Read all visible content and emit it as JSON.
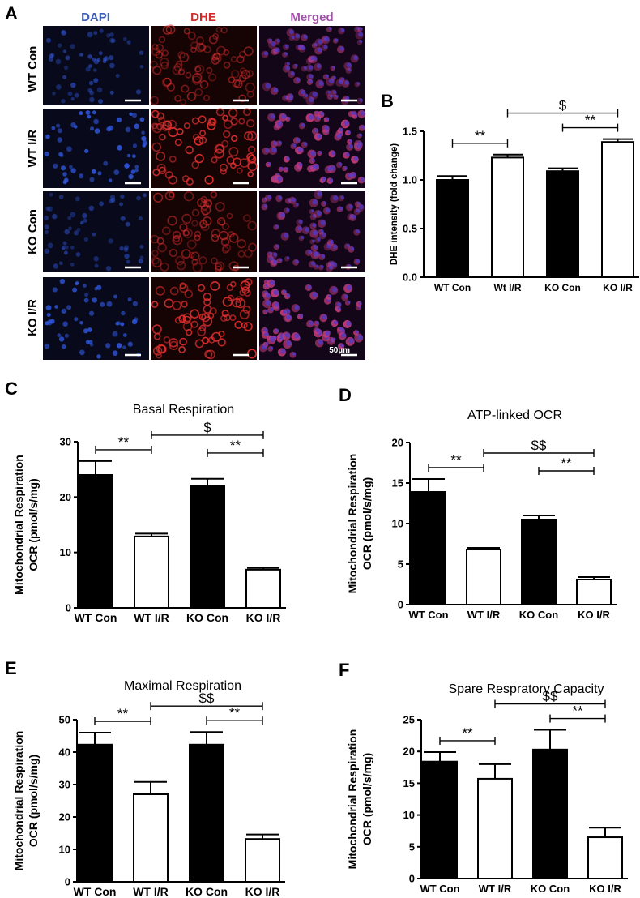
{
  "panel_a": {
    "letter": "A",
    "columns": [
      {
        "label": "DAPI",
        "color": "#3d5fb8"
      },
      {
        "label": "DHE",
        "color": "#d42a2a"
      },
      {
        "label": "Merged",
        "color": "#a050a8"
      }
    ],
    "rows": [
      "WT Con",
      "WT I/R",
      "KO Con",
      "KO I/R"
    ],
    "scale_label": "50µm",
    "colors": {
      "dapi_bg": "#080a1c",
      "dapi_dot": "#2f55d8",
      "dhe_bg": "#160303",
      "dhe_dot": "#e23030",
      "merged_bg": "#120618",
      "merged_dot": "#c03a78"
    }
  },
  "chart_data": [
    {
      "id": "B",
      "type": "bar",
      "title": "",
      "xlabel": "",
      "ylabel": "DHE intensity (fold change)",
      "categories": [
        "WT Con",
        "Wt I/R",
        "KO Con",
        "KO I/R"
      ],
      "values": [
        1.0,
        1.23,
        1.09,
        1.39
      ],
      "errors": [
        0.04,
        0.03,
        0.03,
        0.03
      ],
      "fills": [
        "black",
        "white",
        "black",
        "white"
      ],
      "ylim": [
        0,
        1.5
      ],
      "yticks": [
        "0.0",
        "0.5",
        "1.0",
        "1.5"
      ],
      "annotations": [
        {
          "from": 0,
          "to": 1,
          "label": "**"
        },
        {
          "from": 1,
          "to": 3,
          "label": "$"
        },
        {
          "from": 2,
          "to": 3,
          "label": "**"
        }
      ]
    },
    {
      "id": "C",
      "type": "bar",
      "title": "Basal Respiration",
      "xlabel": "",
      "ylabel": "Mitochondrial Respiration",
      "ylabel2": "OCR (pmol/s/mg)",
      "categories": [
        "WT Con",
        "WT I/R",
        "KO Con",
        "KO I/R"
      ],
      "values": [
        24.0,
        12.9,
        22.0,
        6.9
      ],
      "errors": [
        2.5,
        0.5,
        1.3,
        0.3
      ],
      "fills": [
        "black",
        "white",
        "black",
        "white"
      ],
      "ylim": [
        0,
        30
      ],
      "yticks": [
        "0",
        "10",
        "20",
        "30"
      ],
      "annotations": [
        {
          "from": 0,
          "to": 1,
          "label": "**"
        },
        {
          "from": 1,
          "to": 3,
          "label": "$"
        },
        {
          "from": 2,
          "to": 3,
          "label": "**"
        }
      ]
    },
    {
      "id": "D",
      "type": "bar",
      "title": "ATP-linked OCR",
      "xlabel": "",
      "ylabel": "Mitochondrial Respiration",
      "ylabel2": "OCR (pmol/s/mg)",
      "categories": [
        "WT Con",
        "WT I/R",
        "KO Con",
        "KO I/R"
      ],
      "values": [
        13.9,
        6.8,
        10.5,
        3.1
      ],
      "errors": [
        1.6,
        0.2,
        0.5,
        0.3
      ],
      "fills": [
        "black",
        "white",
        "black",
        "white"
      ],
      "ylim": [
        0,
        20
      ],
      "yticks": [
        "0",
        "5",
        "10",
        "15",
        "20"
      ],
      "annotations": [
        {
          "from": 0,
          "to": 1,
          "label": "**"
        },
        {
          "from": 1,
          "to": 3,
          "label": "$$"
        },
        {
          "from": 2,
          "to": 3,
          "label": "**"
        }
      ]
    },
    {
      "id": "E",
      "type": "bar",
      "title": "Maximal Respiration",
      "xlabel": "",
      "ylabel": "Mitochondrial Respiration",
      "ylabel2": "OCR (pmol/s/mg)",
      "categories": [
        "WT Con",
        "WT I/R",
        "KO Con",
        "KO I/R"
      ],
      "values": [
        42.3,
        27.0,
        42.3,
        13.2
      ],
      "errors": [
        3.7,
        3.8,
        3.9,
        1.4
      ],
      "fills": [
        "black",
        "white",
        "black",
        "white"
      ],
      "ylim": [
        0,
        50
      ],
      "yticks": [
        "0",
        "10",
        "20",
        "30",
        "40",
        "50"
      ],
      "annotations": [
        {
          "from": 0,
          "to": 1,
          "label": "**"
        },
        {
          "from": 1,
          "to": 3,
          "label": "$$"
        },
        {
          "from": 2,
          "to": 3,
          "label": "**"
        }
      ]
    },
    {
      "id": "F",
      "type": "bar",
      "title": "Spare Respratory Capacity",
      "xlabel": "",
      "ylabel": "Mitochondrial Respiration",
      "ylabel2": "OCR (pmol/s/mg)",
      "categories": [
        "WT Con",
        "WT I/R",
        "KO Con",
        "KO I/R"
      ],
      "values": [
        18.4,
        15.7,
        20.3,
        6.5
      ],
      "errors": [
        1.5,
        2.3,
        3.1,
        1.5
      ],
      "fills": [
        "black",
        "white",
        "black",
        "white"
      ],
      "ylim": [
        0,
        25
      ],
      "yticks": [
        "0",
        "5",
        "10",
        "15",
        "20",
        "25"
      ],
      "annotations": [
        {
          "from": 0,
          "to": 1,
          "label": "**"
        },
        {
          "from": 1,
          "to": 3,
          "label": "$$"
        },
        {
          "from": 2,
          "to": 3,
          "label": "**"
        }
      ]
    }
  ]
}
